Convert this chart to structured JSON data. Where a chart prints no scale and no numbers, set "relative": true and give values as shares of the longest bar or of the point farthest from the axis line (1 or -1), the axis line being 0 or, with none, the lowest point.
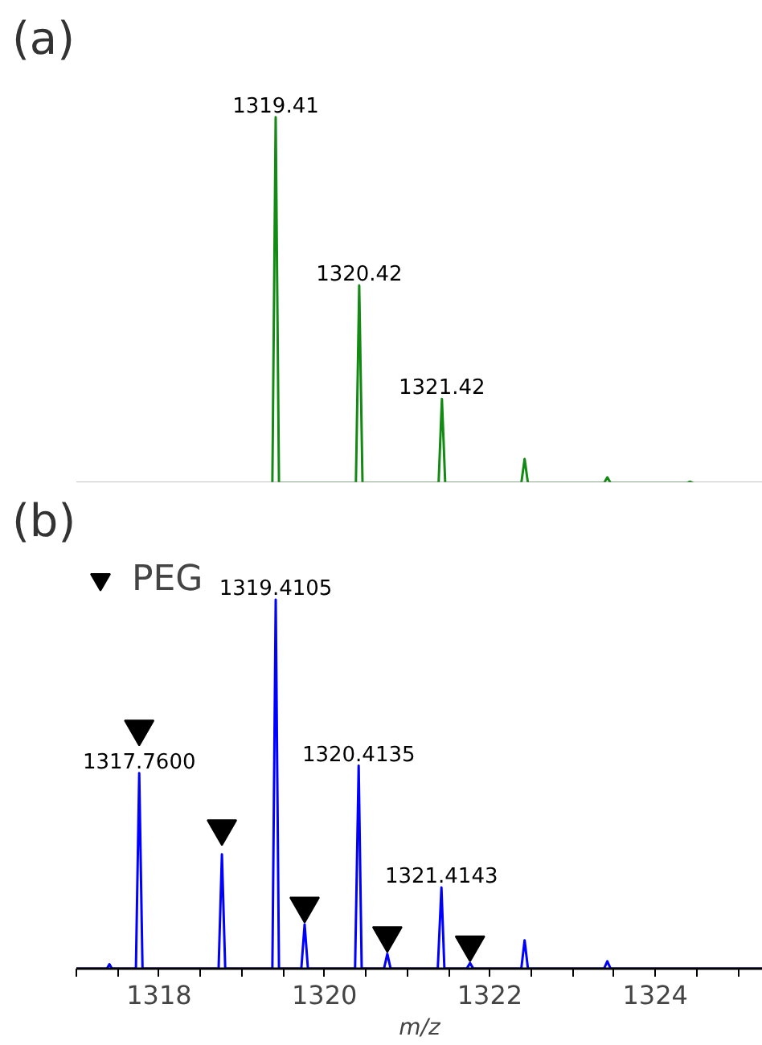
{
  "chart_data": [
    {
      "type": "line",
      "title": "(a)",
      "relative": true,
      "xlim": [
        1317.0,
        1325.3
      ],
      "tick_labels": false,
      "legend": false,
      "series": [
        {
          "color": "#138a13",
          "x": [
            1319.37,
            1319.41,
            1319.45,
            1320.38,
            1320.42,
            1320.46,
            1321.38,
            1321.42,
            1321.46,
            1322.38,
            1322.42,
            1322.46,
            1323.38,
            1323.42,
            1323.46,
            1324.38,
            1324.42,
            1324.46
          ],
          "values": [
            0,
            1,
            0,
            0,
            0.54,
            0,
            0,
            0.23,
            0,
            0,
            0.066,
            0,
            0,
            0.016,
            0,
            0,
            0.004,
            0
          ]
        }
      ],
      "annotations": [
        {
          "text": "1319.41",
          "x": 1319.41,
          "y": 1
        },
        {
          "text": "1320.42",
          "x": 1320.42,
          "y": 0.54
        },
        {
          "text": "1321.42",
          "x": 1321.42,
          "y": 0.23
        }
      ]
    },
    {
      "type": "line",
      "title": "(b)",
      "xlabel": "m/z",
      "relative": true,
      "xlim": [
        1317.0,
        1325.3
      ],
      "tick_labels": "x",
      "legend": "top left",
      "xticks": [
        {
          "value": 1317,
          "label": null
        },
        {
          "value": 1317.5,
          "label": null
        },
        1318,
        {
          "value": 1318.5,
          "label": null
        },
        {
          "value": 1319,
          "label": null
        },
        {
          "value": 1319.5,
          "label": null
        },
        1320,
        {
          "value": 1320.5,
          "label": null
        },
        {
          "value": 1321,
          "label": null
        },
        {
          "value": 1321.5,
          "label": null
        },
        1322,
        {
          "value": 1322.5,
          "label": null
        },
        {
          "value": 1323,
          "label": null
        },
        {
          "value": 1323.5,
          "label": null
        },
        1324,
        {
          "value": 1324.5,
          "label": null
        },
        {
          "value": 1325,
          "label": null
        }
      ],
      "series": [
        {
          "color": "#0000ff",
          "x": [
            1317.0,
            1317.37,
            1317.4,
            1317.43,
            1317.72,
            1317.76,
            1317.8,
            1318.72,
            1318.76,
            1318.8,
            1319.37,
            1319.4105,
            1319.45,
            1319.72,
            1319.76,
            1319.8,
            1320.37,
            1320.4135,
            1320.45,
            1320.72,
            1320.76,
            1320.8,
            1321.37,
            1321.4143,
            1321.45,
            1321.72,
            1321.76,
            1321.8,
            1322.38,
            1322.42,
            1322.46,
            1323.38,
            1323.42,
            1323.46,
            1325.3
          ],
          "values": [
            0,
            0,
            0.012,
            0,
            0,
            0.53,
            0,
            0,
            0.31,
            0,
            0,
            1,
            0,
            0,
            0.12,
            0,
            0,
            0.55,
            0,
            0,
            0.04,
            0,
            0,
            0.22,
            0,
            0,
            0.015,
            0,
            0,
            0.077,
            0,
            0,
            0.02,
            0,
            0
          ]
        },
        {
          "type": "scatter",
          "name": "PEG",
          "marker": "triangle",
          "color": "#000000",
          "x": [
            1317.76,
            1318.76,
            1319.76,
            1320.76,
            1321.76
          ],
          "values": [
            0.65,
            0.38,
            0.17,
            0.09,
            0.065
          ]
        }
      ],
      "annotations": [
        {
          "text": "1317.7600",
          "x": 1317.76,
          "y": 0.53
        },
        {
          "text": "1319.4105",
          "x": 1319.4105,
          "y": 1
        },
        {
          "text": "1320.4135",
          "x": 1320.4135,
          "y": 0.55
        },
        {
          "text": "1321.4143",
          "x": 1321.4143,
          "y": 0.22
        }
      ]
    }
  ]
}
